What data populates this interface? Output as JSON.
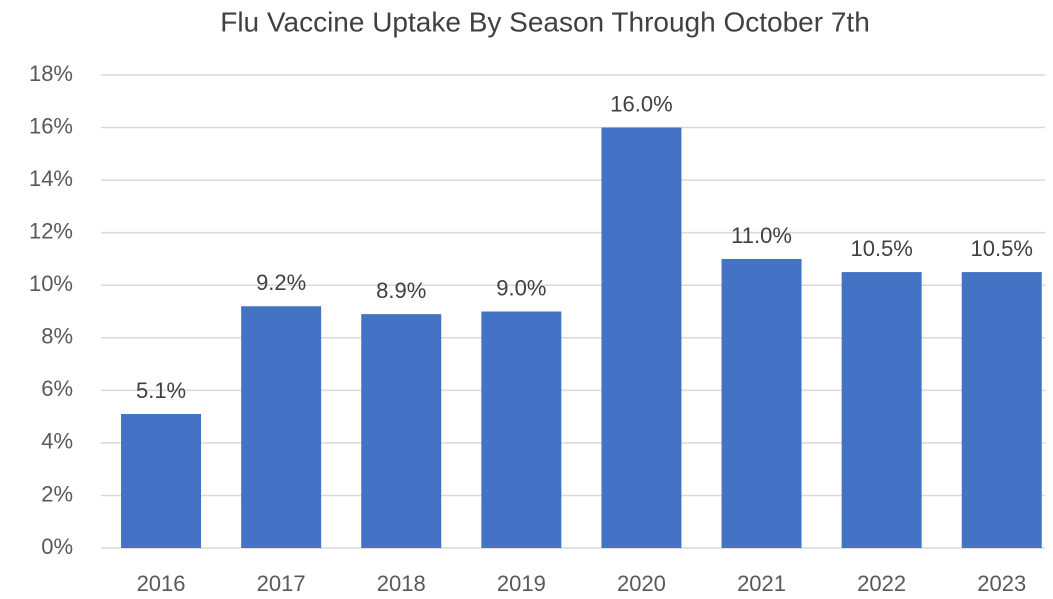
{
  "chart_data": {
    "type": "bar",
    "title": "Flu Vaccine Uptake By Season Through October 7th",
    "categories": [
      "2016",
      "2017",
      "2018",
      "2019",
      "2020",
      "2021",
      "2022",
      "2023"
    ],
    "values": [
      5.1,
      9.2,
      8.9,
      9.0,
      16.0,
      11.0,
      10.5,
      10.5
    ],
    "value_labels": [
      "5.1%",
      "9.2%",
      "8.9%",
      "9.0%",
      "16.0%",
      "11.0%",
      "10.5%",
      "10.5%"
    ],
    "color": "#4472c4",
    "ylim": [
      0,
      18
    ],
    "yticks": [
      {
        "value": 0,
        "label": "0%"
      },
      {
        "value": 2,
        "label": "2%"
      },
      {
        "value": 4,
        "label": "4%"
      },
      {
        "value": 6,
        "label": "6%"
      },
      {
        "value": 8,
        "label": "8%"
      },
      {
        "value": 10,
        "label": "10%"
      },
      {
        "value": 12,
        "label": "12%"
      },
      {
        "value": 14,
        "label": "14%"
      },
      {
        "value": 16,
        "label": "16%"
      },
      {
        "value": 18,
        "label": "18%"
      }
    ],
    "grid": true
  }
}
